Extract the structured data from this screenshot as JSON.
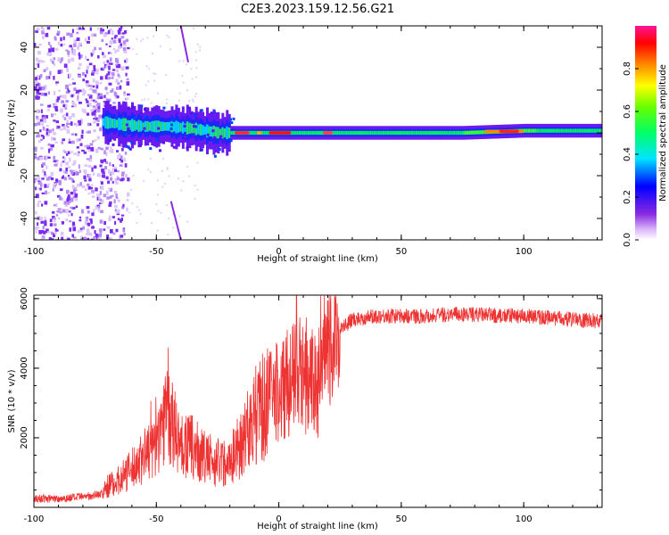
{
  "title": "C2E3.2023.159.12.56.G21",
  "chart_data": [
    {
      "type": "heatmap",
      "xlabel": "Height of straight line (km)",
      "ylabel": "Frequency (Hz)",
      "xlim": [
        -100,
        132
      ],
      "ylim": [
        -50,
        50
      ],
      "xticks": [
        "-100",
        "-50",
        "0",
        "50",
        "100"
      ],
      "yticks": [
        "-40",
        "-20",
        "0",
        "20",
        "40"
      ],
      "colorbar": {
        "label": "Normalized spectral amplitude",
        "ticks": [
          "0.0",
          "0.2",
          "0.4",
          "0.6",
          "0.8"
        ],
        "range": [
          0,
          1
        ]
      },
      "ridge": [
        {
          "x": -72,
          "y": 5
        },
        {
          "x": -65,
          "y": 4
        },
        {
          "x": -55,
          "y": 3
        },
        {
          "x": -45,
          "y": 3
        },
        {
          "x": -35,
          "y": 2
        },
        {
          "x": -25,
          "y": 0
        },
        {
          "x": -15,
          "y": 0
        },
        {
          "x": 0,
          "y": 0
        },
        {
          "x": 25,
          "y": 0
        },
        {
          "x": 50,
          "y": 0
        },
        {
          "x": 75,
          "y": 0
        },
        {
          "x": 100,
          "y": 1
        },
        {
          "x": 132,
          "y": 1
        }
      ]
    },
    {
      "type": "line",
      "xlabel": "Height of straight line (km)",
      "ylabel": "SNR (10 * v/v)",
      "xlim": [
        -100,
        132
      ],
      "ylim": [
        0,
        6100
      ],
      "xticks": [
        "-100",
        "-50",
        "0",
        "50",
        "100"
      ],
      "yticks": [
        "2000",
        "4000",
        "6000"
      ],
      "color": "#ee3333",
      "series": [
        {
          "x": [
            -100,
            -90,
            -80,
            -72,
            -70,
            -65,
            -60,
            -55,
            -50,
            -47,
            -45,
            -40,
            -35,
            -30,
            -25,
            -20,
            -15,
            -10,
            -5,
            0,
            5,
            10,
            15,
            18,
            20,
            25,
            30,
            40,
            50,
            60,
            70,
            80,
            90,
            100,
            110,
            120,
            132
          ],
          "y": [
            250,
            250,
            300,
            400,
            600,
            800,
            1100,
            1500,
            1700,
            2700,
            2600,
            1800,
            1700,
            1400,
            1300,
            1300,
            1900,
            2600,
            3000,
            3300,
            3700,
            3700,
            3500,
            3800,
            4400,
            5100,
            5400,
            5500,
            5500,
            5500,
            5550,
            5550,
            5500,
            5500,
            5450,
            5400,
            5350
          ]
        }
      ]
    }
  ]
}
